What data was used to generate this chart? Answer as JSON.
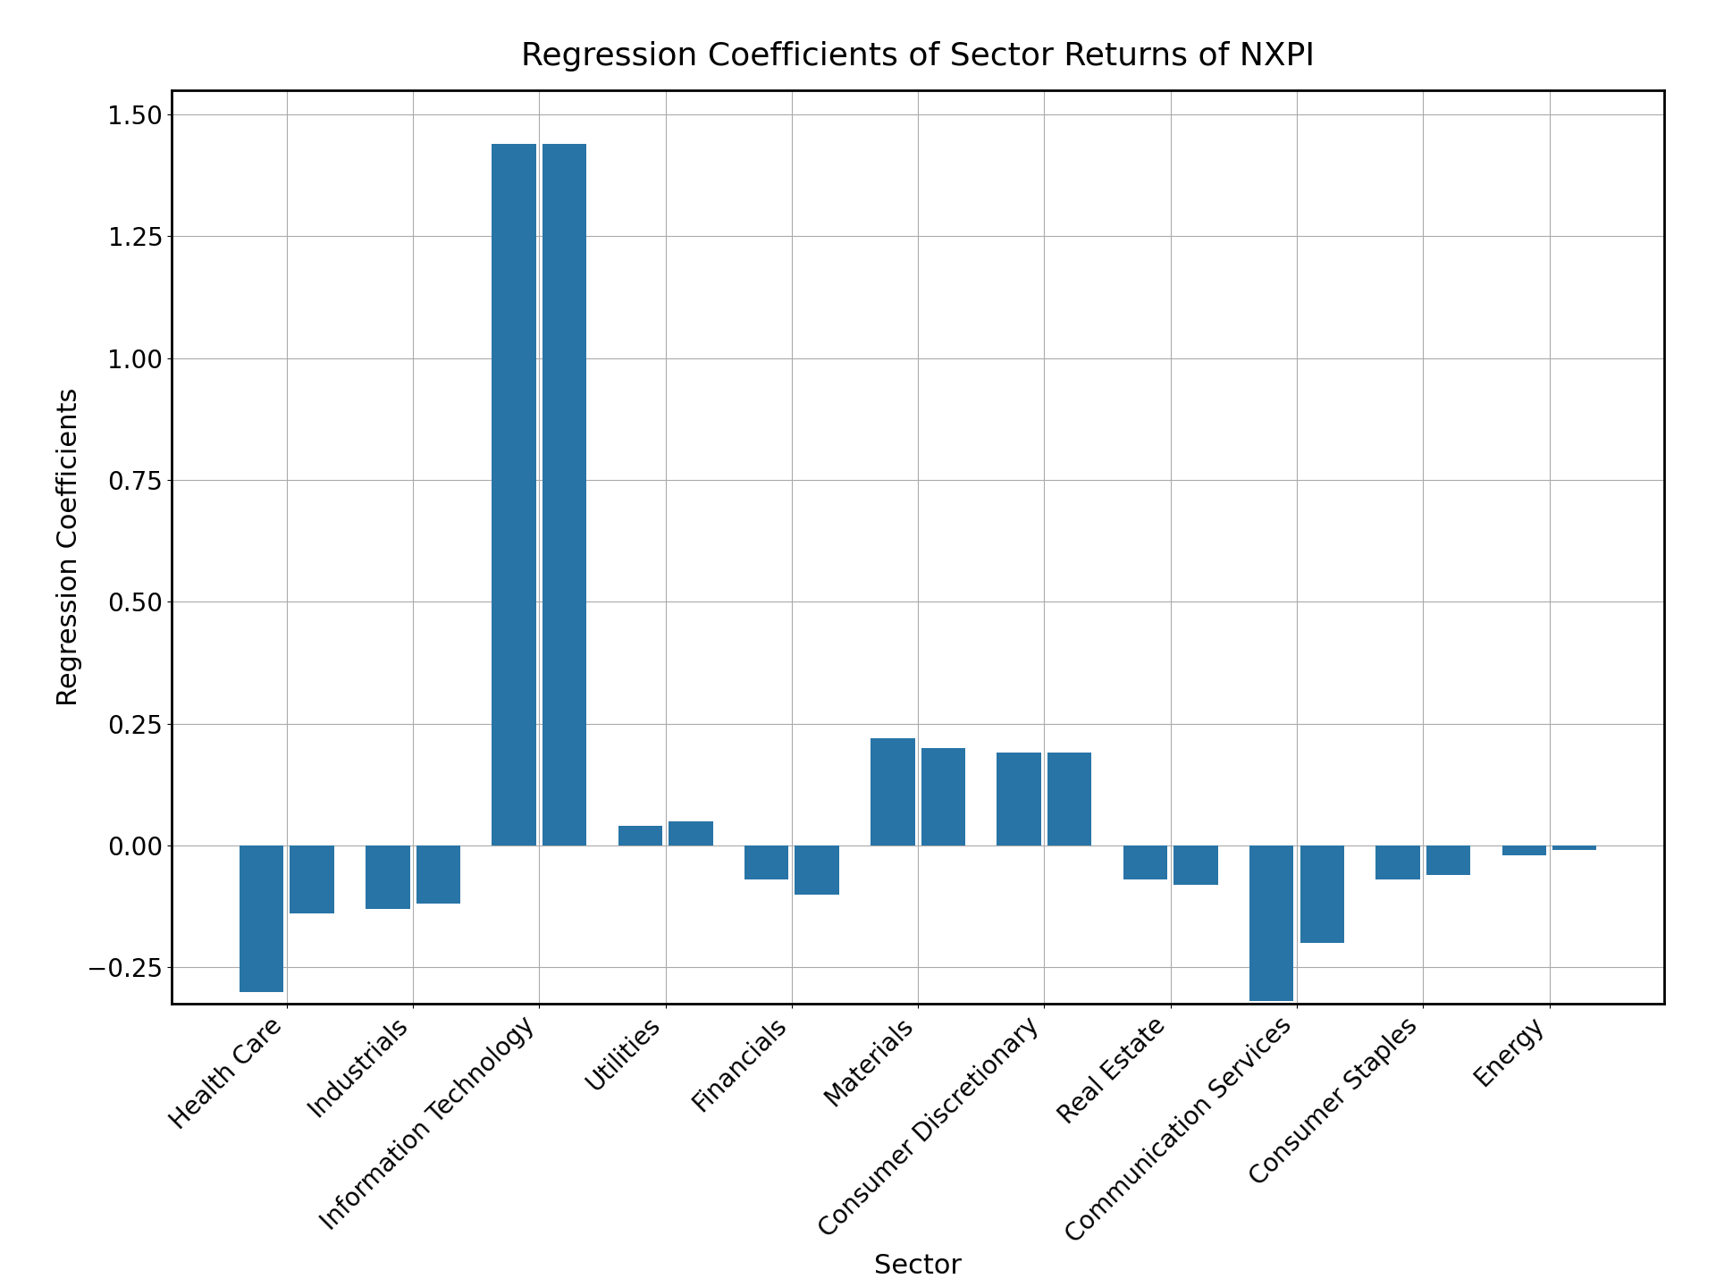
{
  "title": "Regression Coefficients of Sector Returns of NXPI",
  "xlabel": "Sector",
  "ylabel": "Regression Coefficients",
  "bar_color": "#2874a6",
  "categories": [
    "Health Care",
    "Industrials",
    "Information Technology",
    "Utilities",
    "Financials",
    "Materials",
    "Consumer Discretionary",
    "Real Estate",
    "Communication Services",
    "Consumer Staples",
    "Energy"
  ],
  "values_1": [
    -0.3,
    -0.13,
    1.44,
    0.04,
    -0.07,
    0.22,
    0.19,
    -0.07,
    -0.32,
    -0.07,
    -0.02
  ],
  "values_2": [
    -0.14,
    -0.12,
    1.44,
    0.05,
    -0.1,
    0.2,
    0.19,
    -0.08,
    -0.2,
    -0.06,
    -0.01
  ],
  "ylim": [
    -0.325,
    1.55
  ],
  "yticks": [
    -0.25,
    0.0,
    0.25,
    0.5,
    0.75,
    1.0,
    1.25,
    1.5
  ],
  "background_color": "#ffffff",
  "title_fontsize": 26,
  "label_fontsize": 22,
  "tick_fontsize": 20,
  "bar_width": 0.35,
  "bar_gap": 0.05
}
